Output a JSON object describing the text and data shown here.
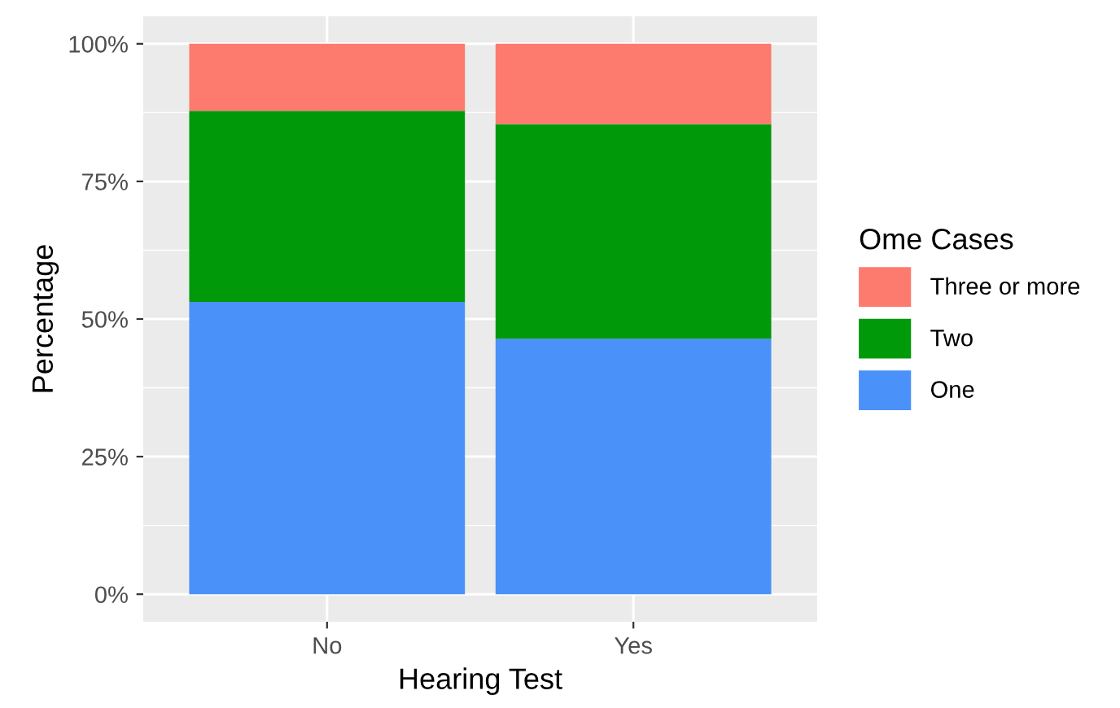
{
  "chart_data": {
    "type": "bar",
    "stacked": true,
    "xlabel": "Hearing Test",
    "ylabel": "Percentage",
    "legend_title": "Ome Cases",
    "categories": [
      "No",
      "Yes"
    ],
    "series": [
      {
        "name": "One",
        "color": "#4a91f9",
        "values": [
          53.1,
          46.4
        ]
      },
      {
        "name": "Two",
        "color": "#00990a",
        "values": [
          34.7,
          39.0
        ]
      },
      {
        "name": "Three or more",
        "color": "#fd7b6e",
        "values": [
          12.2,
          14.6
        ]
      }
    ],
    "ylim": [
      -5,
      105
    ],
    "yticks": [
      {
        "value": 0,
        "label": "0%"
      },
      {
        "value": 25,
        "label": "25%"
      },
      {
        "value": 50,
        "label": "50%"
      },
      {
        "value": 75,
        "label": "75%"
      },
      {
        "value": 100,
        "label": "100%"
      }
    ],
    "grid": true,
    "legend": "right"
  }
}
